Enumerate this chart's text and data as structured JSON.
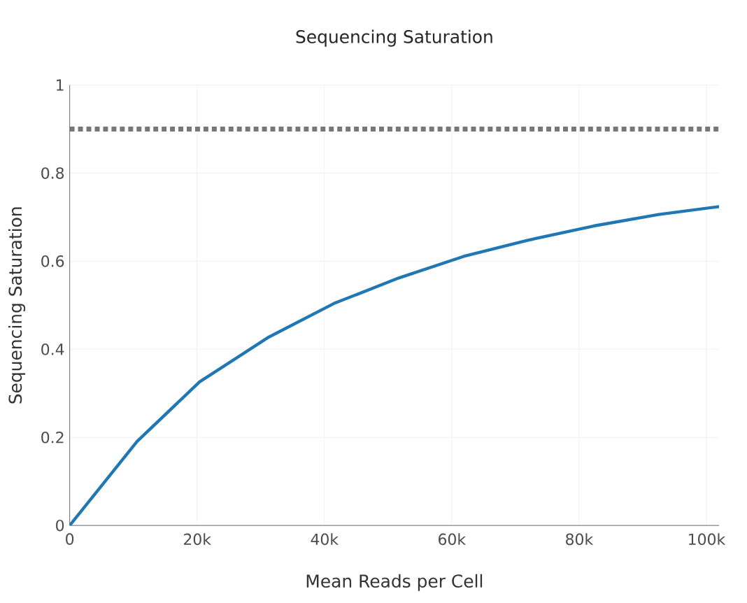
{
  "chart_data": {
    "type": "line",
    "title": "Sequencing Saturation",
    "xlabel": "Mean Reads per Cell",
    "ylabel": "Sequencing Saturation",
    "x": [
      0,
      10600,
      20400,
      31300,
      41500,
      51700,
      61900,
      72100,
      82300,
      92500,
      102000
    ],
    "series": [
      {
        "color": "#1f77b4",
        "values": [
          0,
          0.191,
          0.326,
          0.428,
          0.504,
          0.562,
          0.611,
          0.648,
          0.68,
          0.706,
          0.724
        ]
      }
    ],
    "xlim": [
      0,
      102000
    ],
    "ylim": [
      0,
      1
    ],
    "xticks": [
      {
        "value": 0,
        "label": "0"
      },
      {
        "value": 20000,
        "label": "20k"
      },
      {
        "value": 40000,
        "label": "40k"
      },
      {
        "value": 60000,
        "label": "60k"
      },
      {
        "value": 80000,
        "label": "80k"
      },
      {
        "value": 100000,
        "label": "100k"
      }
    ],
    "yticks": [
      0,
      0.2,
      0.4,
      0.6,
      0.8,
      1
    ],
    "ref_lines": [
      {
        "axis": "y",
        "value": 0.9,
        "color": "#777777",
        "line_style": "dotted"
      }
    ],
    "grid": true,
    "line_style": "solid",
    "marker": "none"
  }
}
